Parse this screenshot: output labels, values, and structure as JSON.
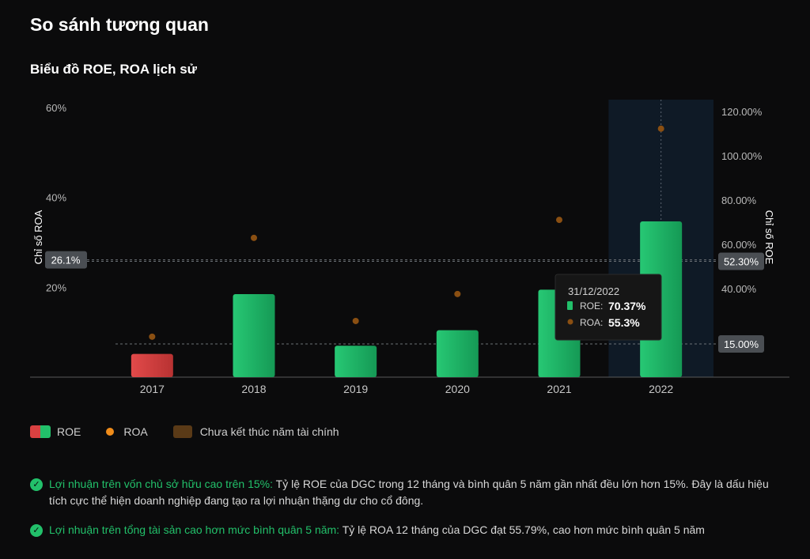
{
  "header": {
    "title": "So sánh tương quan",
    "chart_title": "Biểu đồ ROE, ROA lịch sử"
  },
  "chart_data": {
    "type": "bar",
    "title": "Biểu đồ ROE, ROA lịch sử",
    "categories": [
      "2017",
      "2018",
      "2019",
      "2020",
      "2021",
      "2022"
    ],
    "series": [
      {
        "name": "ROE",
        "kind": "bar",
        "axis": "right",
        "values": [
          10.5,
          37.5,
          14.2,
          21.2,
          39.5,
          70.37
        ],
        "colors": [
          "#d94141",
          "#22c06a",
          "#22c06a",
          "#22c06a",
          "#22c06a",
          "#22c06a"
        ]
      },
      {
        "name": "ROA",
        "kind": "dot",
        "axis": "left",
        "values": [
          9.0,
          31.0,
          12.5,
          18.5,
          35.0,
          55.3
        ],
        "color": "#f08c1a"
      }
    ],
    "left_axis": {
      "label": "Chỉ số ROA",
      "ylim": [
        0,
        60
      ],
      "ticks": [
        "20%",
        "40%",
        "60%"
      ],
      "tick_values": [
        20,
        40,
        60
      ]
    },
    "right_axis": {
      "label": "Chỉ số ROE",
      "ylim": [
        0,
        120
      ],
      "ticks": [
        "40.00%",
        "60.00%",
        "80.00%",
        "100.00%",
        "120.00%"
      ],
      "tick_values": [
        40,
        60,
        80,
        100,
        120
      ]
    },
    "reference_lines": [
      {
        "axis": "left",
        "value": 26.1,
        "label": "26.1%"
      },
      {
        "axis": "right",
        "value": 52.3,
        "label": "52.30%"
      },
      {
        "axis": "right",
        "value": 15.0,
        "label": "15.00%"
      }
    ],
    "highlight_category": "2022",
    "tooltip": {
      "date": "31/12/2022",
      "roe_label": "ROE:",
      "roe_value": "70.37%",
      "roa_label": "ROA:",
      "roa_value": "55.3%"
    },
    "colors": {
      "roe_positive": "#22c06a",
      "roe_negative": "#d94141",
      "roa": "#f08c1a",
      "highlight": "#0f1a26"
    }
  },
  "legend": {
    "roe_label": "ROE",
    "roa_label": "ROA",
    "pending_label": "Chưa kết thúc năm tài chính"
  },
  "notes": [
    {
      "lead": "Lợi nhuận trên vốn chủ sở hữu cao trên 15%:",
      "text": " Tỷ lệ ROE của DGC trong 12 tháng và bình quân 5 năm gần nhất đều lớn hơn 15%. Đây là dấu hiệu tích cực thể hiện doanh nghiệp đang tạo ra lợi nhuận thặng dư cho cổ đông."
    },
    {
      "lead": "Lợi nhuận trên tổng tài sản cao hơn mức bình quân 5 năm:",
      "text": " Tỷ lệ ROA 12 tháng của DGC đạt 55.79%, cao hơn mức bình quân 5 năm"
    }
  ]
}
